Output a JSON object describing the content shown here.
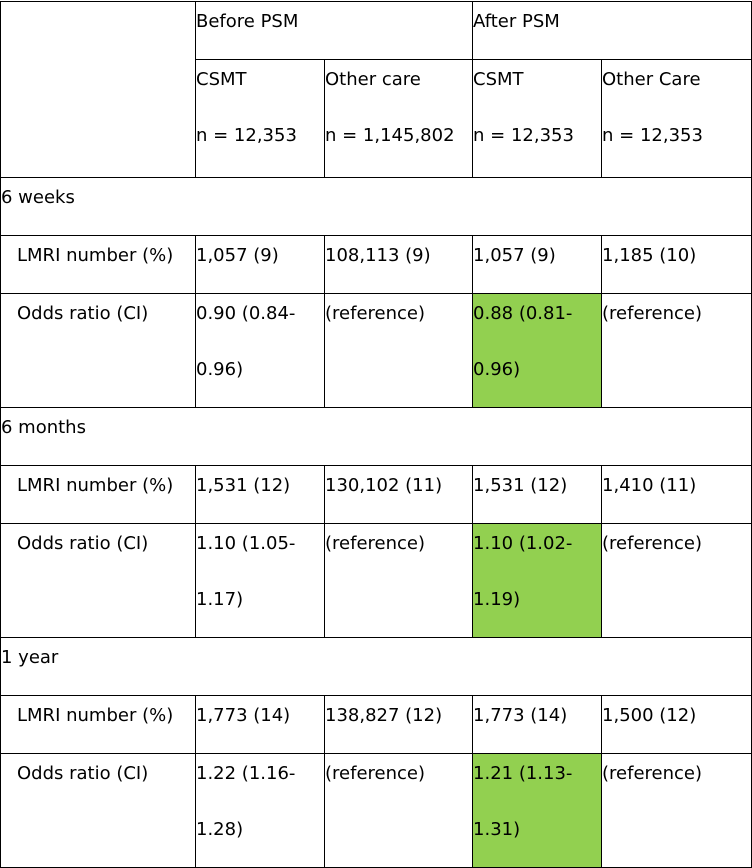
{
  "table": {
    "group_before": "Before PSM",
    "group_after": "After PSM",
    "columns": [
      {
        "name": "CSMT",
        "n": "n = 12,353"
      },
      {
        "name": "Other care",
        "n": "n = 1,145,802"
      },
      {
        "name": "CSMT",
        "n": "n = 12,353"
      },
      {
        "name": "Other Care",
        "n": "n = 12,353"
      }
    ],
    "sections": [
      {
        "title": "6 weeks",
        "lmri_label": "LMRI number (%)",
        "lmri": [
          "1,057 (9)",
          "108,113 (9)",
          "1,057 (9)",
          "1,185 (10)"
        ],
        "odds_label": "Odds ratio (CI)",
        "odds_before_l1": "0.90 (0.84-",
        "odds_before_l2": "0.96)",
        "odds_before_ref": "(reference)",
        "odds_after_l1": "0.88 (0.81-",
        "odds_after_l2": "0.96)",
        "odds_after_ref": "(reference)"
      },
      {
        "title": "6 months",
        "lmri_label": "LMRI number (%)",
        "lmri": [
          "1,531 (12)",
          "130,102 (11)",
          "1,531 (12)",
          "1,410 (11)"
        ],
        "odds_label": "Odds ratio (CI)",
        "odds_before_l1": "1.10 (1.05-",
        "odds_before_l2": "1.17)",
        "odds_before_ref": "(reference)",
        "odds_after_l1": "1.10 (1.02-",
        "odds_after_l2": "1.19)",
        "odds_after_ref": "(reference)"
      },
      {
        "title": "1 year",
        "lmri_label": "LMRI number (%)",
        "lmri": [
          "1,773 (14)",
          "138,827 (12)",
          "1,773 (14)",
          "1,500 (12)"
        ],
        "odds_label": "Odds ratio (CI)",
        "odds_before_l1": "1.22 (1.16-",
        "odds_before_l2": "1.28)",
        "odds_before_ref": "(reference)",
        "odds_after_l1": "1.21 (1.13-",
        "odds_after_l2": "1.31)",
        "odds_after_ref": "(reference)"
      }
    ],
    "highlight_color": "#92d050"
  }
}
